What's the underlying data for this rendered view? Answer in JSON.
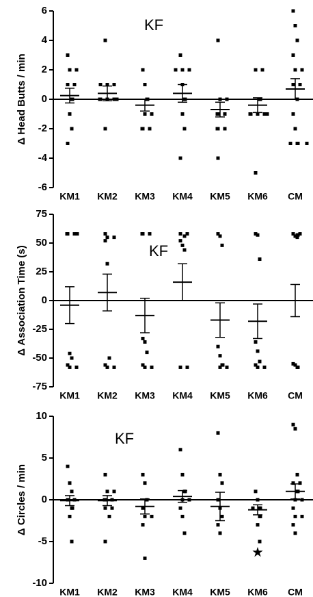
{
  "chart_data": [
    {
      "type": "dotplot",
      "y_label": "Δ Head Butts / min",
      "annotation": "KF",
      "categories": [
        "KM1",
        "KM2",
        "KM3",
        "KM4",
        "KM5",
        "KM6",
        "CM"
      ],
      "ylim": [
        -6,
        6
      ],
      "yticks": [
        -6,
        -4,
        -2,
        0,
        2,
        4,
        6
      ],
      "color": "#000000",
      "points": [
        [
          3,
          2,
          2,
          1,
          1,
          0,
          0,
          -1,
          -2,
          -3
        ],
        [
          4,
          1,
          1,
          1,
          0,
          0,
          0,
          0,
          0,
          -2
        ],
        [
          2,
          1,
          0,
          0,
          -1,
          -1,
          -2,
          -2,
          -2
        ],
        [
          3,
          2,
          2,
          2,
          1,
          0,
          0,
          -1,
          -2,
          -4
        ],
        [
          4,
          0,
          0,
          -1,
          -1,
          -1,
          -2,
          -2,
          -2,
          -4
        ],
        [
          2,
          2,
          0,
          0,
          -1,
          -1,
          -1,
          -1,
          -1,
          -5
        ],
        [
          6,
          5,
          4,
          3,
          2,
          2,
          1,
          1,
          0,
          -1,
          -2,
          -3,
          -3,
          -3,
          -3
        ]
      ],
      "mean": [
        0.25,
        0.4,
        -0.4,
        0.4,
        -0.7,
        -0.4,
        0.7
      ],
      "sem": [
        0.5,
        0.5,
        0.4,
        0.6,
        0.5,
        0.5,
        0.7
      ]
    },
    {
      "type": "dotplot",
      "y_label": "Δ Association Time (s)",
      "annotation": "KF",
      "categories": [
        "KM1",
        "KM2",
        "KM3",
        "KM4",
        "KM5",
        "KM6",
        "CM"
      ],
      "ylim": [
        -75,
        75
      ],
      "yticks": [
        -75,
        -50,
        -25,
        0,
        25,
        50,
        75
      ],
      "color": "#000000",
      "points": [
        [
          58,
          58,
          58,
          58,
          -46,
          -50,
          -56,
          -58,
          -58
        ],
        [
          58,
          55,
          55,
          52,
          32,
          -50,
          -56,
          -58,
          -58
        ],
        [
          58,
          58,
          58,
          -33,
          -36,
          -45,
          -56,
          -58,
          -58
        ],
        [
          58,
          58,
          56,
          52,
          48,
          44,
          -58,
          -58
        ],
        [
          58,
          56,
          48,
          -40,
          -48,
          -56,
          -56,
          -58,
          -58
        ],
        [
          58,
          57,
          36,
          -36,
          -44,
          -53,
          -56,
          -58,
          -58
        ],
        [
          58,
          58,
          57,
          57,
          56,
          55,
          -55,
          -56,
          -58,
          -58
        ]
      ],
      "mean": [
        -4,
        7,
        -13,
        16,
        -17,
        -18,
        0
      ],
      "sem": [
        16,
        16,
        15,
        16,
        15,
        15,
        14
      ]
    },
    {
      "type": "dotplot",
      "y_label": "Δ Circles / min",
      "annotation": "KF",
      "categories": [
        "KM1",
        "KM2",
        "KM3",
        "KM4",
        "KM5",
        "KM6",
        "CM"
      ],
      "ylim": [
        -10,
        10
      ],
      "yticks": [
        -10,
        -5,
        0,
        5,
        10
      ],
      "color": "#000000",
      "points": [
        [
          4,
          2,
          1,
          0,
          0,
          -1,
          -1,
          -2,
          -5
        ],
        [
          3,
          1,
          1,
          0,
          0,
          0,
          -1,
          -1,
          -2,
          -5
        ],
        [
          3,
          2,
          0,
          -1,
          -2,
          -2,
          -3,
          -7
        ],
        [
          6,
          3,
          1,
          1,
          0,
          0,
          -1,
          -2,
          -4
        ],
        [
          8,
          3,
          2,
          0,
          -1,
          -2,
          -3,
          -4
        ],
        [
          1,
          0,
          -1,
          -1,
          -1,
          -2,
          -2,
          -3,
          -5
        ],
        [
          9,
          8.5,
          3,
          2,
          2,
          1,
          1,
          0,
          0,
          -1,
          -2,
          -2,
          -3,
          -4
        ]
      ],
      "star_points": [
        null,
        null,
        null,
        null,
        null,
        -6.3,
        null
      ],
      "mean": [
        -0.1,
        -0.1,
        -0.8,
        0.4,
        -0.8,
        -1.2,
        1
      ],
      "sem": [
        0.6,
        0.6,
        0.9,
        0.7,
        1.7,
        0.6,
        0.9
      ]
    }
  ]
}
